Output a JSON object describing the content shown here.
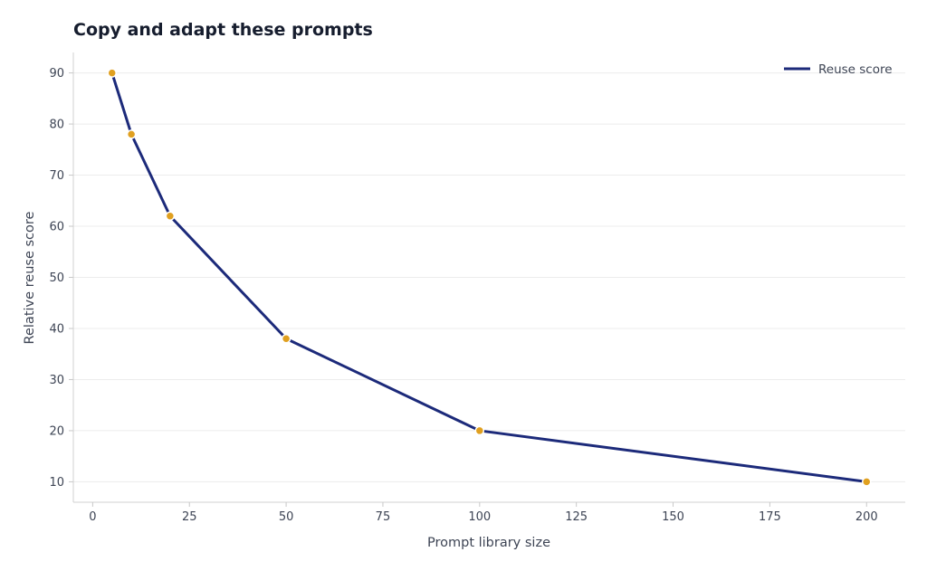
{
  "chart_data": {
    "type": "line",
    "title": "Copy and adapt these prompts",
    "xlabel": "Prompt library size",
    "ylabel": "Relative reuse score",
    "xlim": [
      -5,
      210
    ],
    "ylim": [
      6,
      94
    ],
    "x_ticks": [
      0,
      25,
      50,
      75,
      100,
      125,
      150,
      175,
      200
    ],
    "y_ticks": [
      10,
      20,
      30,
      40,
      50,
      60,
      70,
      80,
      90
    ],
    "grid": "horizontal",
    "legend_position": "top-right",
    "series": [
      {
        "name": "Reuse score",
        "color": "#1c2a7a",
        "marker_color": "#e0a020",
        "x": [
          5,
          10,
          20,
          50,
          100,
          200
        ],
        "y": [
          90,
          78,
          62,
          38,
          20,
          10
        ]
      }
    ]
  }
}
